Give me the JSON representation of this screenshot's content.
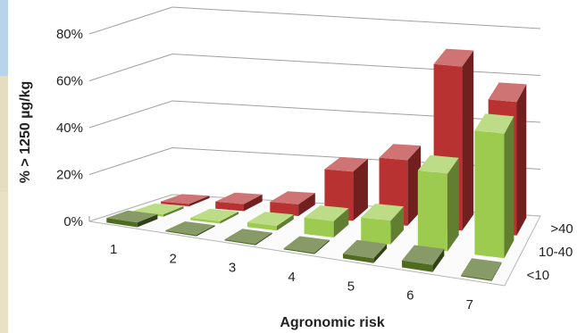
{
  "chart_data": {
    "type": "bar",
    "title": "",
    "xlabel": "Agronomic risk",
    "ylabel": "% > 1250 µg/kg",
    "categories": [
      "1",
      "2",
      "3",
      "4",
      "5",
      "6",
      "7"
    ],
    "y_ticks": [
      "0%",
      "20%",
      "40%",
      "60%",
      "80%"
    ],
    "ylim": [
      0,
      80
    ],
    "grid": true,
    "series": [
      {
        "name": "<10",
        "color": "#4e6b1f",
        "values": [
          2,
          0.5,
          0.5,
          0.5,
          2,
          3,
          0.5
        ]
      },
      {
        "name": "10-40",
        "color": "#9ccb4f",
        "values": [
          1,
          1,
          2,
          7,
          10,
          33,
          53
        ]
      },
      {
        "name": ">40",
        "color": "#b83232",
        "values": [
          1,
          3,
          5,
          21,
          28,
          70,
          57
        ]
      }
    ]
  }
}
